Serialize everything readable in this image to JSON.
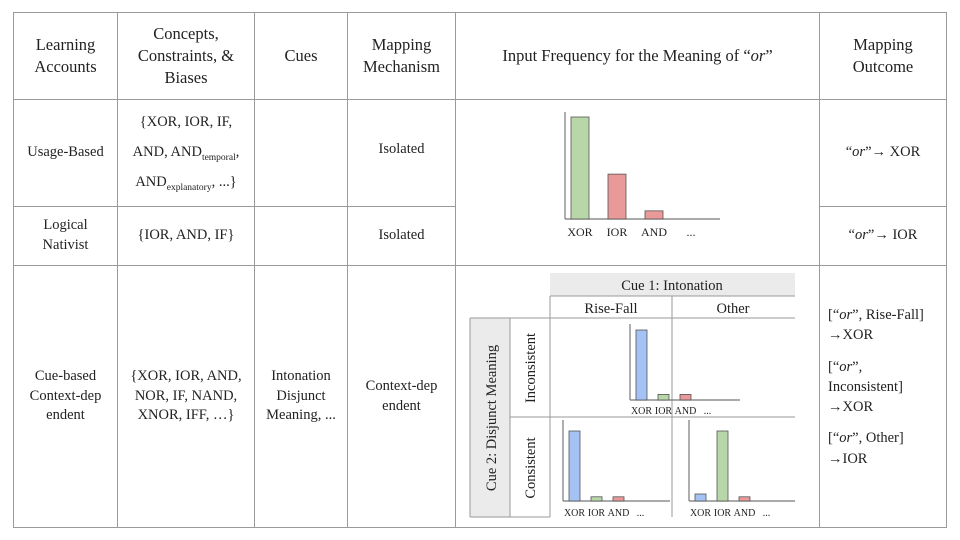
{
  "header": {
    "learning_accounts": "Learning Accounts",
    "concepts": "Concepts, Constraints, & Biases",
    "cues": "Cues",
    "mapping_mechanism": "Mapping Mechanism",
    "input_frequency_prefix": "Input Frequency for the Meaning of “",
    "input_frequency_word": "or",
    "input_frequency_suffix": "”",
    "mapping_outcome": "Mapping Outcome"
  },
  "rows": {
    "usage": {
      "account": "Usage-Based",
      "concepts_line1": "{XOR, IOR, IF,",
      "concepts_line2a": "AND, AND",
      "concepts_line2_sub": "temporal",
      "concepts_line2b": ",",
      "concepts_line3a": "AND",
      "concepts_line3_sub": "explanatory",
      "concepts_line3b": ", ...}",
      "mechanism": "Isolated",
      "outcome_open": "“",
      "outcome_word": "or",
      "outcome_rest": "”→ XOR"
    },
    "nativist": {
      "account": "Logical Nativist",
      "concepts": "{IOR, AND, IF}",
      "mechanism": "Isolated",
      "outcome_open": "“",
      "outcome_word": "or",
      "outcome_rest": "”→ IOR"
    },
    "cue": {
      "account": "Cue-based Context-dep endent",
      "concepts": "{XOR, IOR, AND, NOR, IF, NAND, XNOR, IFF, …}",
      "cues": "Intonation Disjunct Meaning, ...",
      "mechanism": "Context-dep endent",
      "outcomes": [
        {
          "open": "[“",
          "word": "or",
          "rest": "”, Rise-Fall]",
          "arrow": "→XOR"
        },
        {
          "open": "[“",
          "word": "or",
          "rest": "”, Inconsistent]",
          "arrow": "→XOR"
        },
        {
          "open": "[“",
          "word": "or",
          "rest": "”, Other]",
          "arrow": "→IOR"
        }
      ]
    }
  },
  "cue_table": {
    "cue1_label": "Cue 1: Intonation",
    "cue1_levels": [
      "Rise-Fall",
      "Other"
    ],
    "cue2_label": "Cue 2: Disjunct Meaning",
    "cue2_levels": [
      "Inconsistent",
      "Consistent"
    ]
  },
  "colors": {
    "xor_green": "#b7d7a8",
    "ior_red": "#ea9999",
    "and_green": "#b7d7a8",
    "blue": "#a4c2f4",
    "shade": "#ebebeb",
    "border": "#9a9a9a"
  },
  "chart_data": [
    {
      "type": "bar",
      "panel": "usage-logical",
      "categories": [
        "XOR",
        "IOR",
        "AND",
        "..."
      ],
      "values": [
        100,
        44,
        8,
        0
      ],
      "colors": [
        "#b7d7a8",
        "#ea9999",
        "#ea9999",
        null
      ],
      "ylim": [
        0,
        110
      ]
    },
    {
      "type": "bar",
      "panel": "rise-fall-inconsistent",
      "categories": [
        "XOR",
        "IOR",
        "AND",
        "..."
      ],
      "values": [
        100,
        8,
        8,
        0
      ],
      "colors": [
        "#a4c2f4",
        "#b7d7a8",
        "#ea9999",
        null
      ],
      "ylim": [
        0,
        110
      ]
    },
    {
      "type": "bar",
      "panel": "other-inconsistent",
      "categories": [],
      "values": []
    },
    {
      "type": "bar",
      "panel": "rise-fall-consistent",
      "categories": [
        "XOR",
        "IOR",
        "AND",
        "..."
      ],
      "values": [
        100,
        6,
        6,
        0
      ],
      "colors": [
        "#a4c2f4",
        "#b7d7a8",
        "#ea9999",
        null
      ],
      "ylim": [
        0,
        110
      ]
    },
    {
      "type": "bar",
      "panel": "other-consistent",
      "categories": [
        "XOR",
        "IOR",
        "AND",
        "..."
      ],
      "values": [
        10,
        100,
        6,
        0
      ],
      "colors": [
        "#a4c2f4",
        "#b7d7a8",
        "#ea9999",
        null
      ],
      "ylim": [
        0,
        110
      ]
    }
  ]
}
